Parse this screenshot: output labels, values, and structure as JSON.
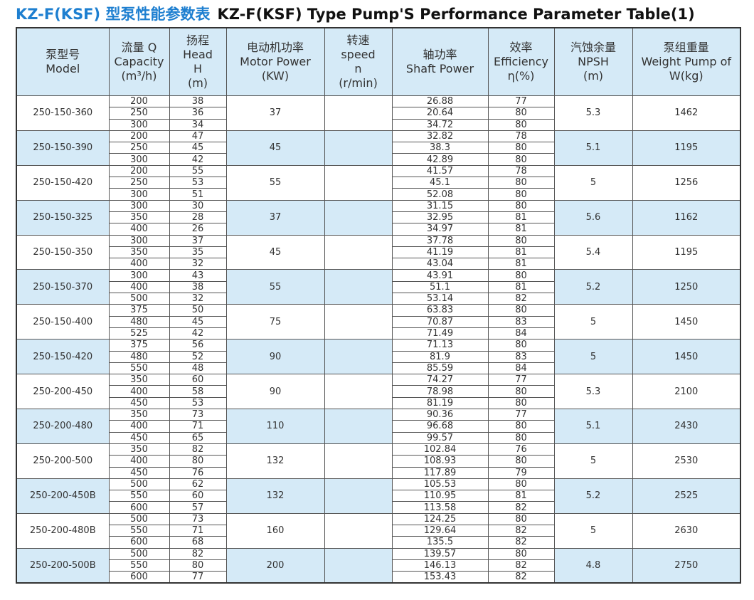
{
  "title": {
    "cn": "KZ-F(KSF) 型泵性能参数表",
    "en": "KZ-F(KSF) Type Pump'S Performance Parameter Table(1)"
  },
  "table": {
    "header": [
      [
        "泵型号",
        "Model"
      ],
      [
        "流量 Q",
        "Capacity",
        "(m³/h)"
      ],
      [
        "扬程",
        "Head",
        "H",
        "(m)"
      ],
      [
        "电动机功率",
        "Motor Power",
        "(KW)"
      ],
      [
        "转速",
        "speed",
        "n",
        "(r/min)"
      ],
      [
        "轴功率",
        "Shaft Power"
      ],
      [
        "效率",
        "Efficiency",
        "η(%)"
      ],
      [
        "汽蚀余量",
        "NPSH",
        "(m)"
      ],
      [
        "泵组重量",
        "Weight Pump of",
        "W(kg)"
      ]
    ],
    "groups": [
      {
        "model": "250-150-360",
        "motor": 37,
        "npsh": 5.3,
        "weight": 1462,
        "rows": [
          [
            200,
            38,
            26.88,
            77
          ],
          [
            250,
            36,
            20.64,
            80
          ],
          [
            300,
            34,
            34.72,
            80
          ]
        ]
      },
      {
        "model": "250-150-390",
        "motor": 45,
        "npsh": 5.1,
        "weight": 1195,
        "rows": [
          [
            200,
            47,
            32.82,
            78
          ],
          [
            250,
            45,
            38.3,
            80
          ],
          [
            300,
            42,
            42.89,
            80
          ]
        ]
      },
      {
        "model": "250-150-420",
        "motor": 55,
        "npsh": 5,
        "weight": 1256,
        "rows": [
          [
            200,
            55,
            41.57,
            78
          ],
          [
            250,
            53,
            45.1,
            80
          ],
          [
            300,
            51,
            52.08,
            80
          ]
        ]
      },
      {
        "model": "250-150-325",
        "motor": 37,
        "npsh": 5.6,
        "weight": 1162,
        "rows": [
          [
            300,
            30,
            31.15,
            80
          ],
          [
            350,
            28,
            32.95,
            81
          ],
          [
            400,
            26,
            34.97,
            81
          ]
        ]
      },
      {
        "model": "250-150-350",
        "motor": 45,
        "npsh": 5.4,
        "weight": 1195,
        "rows": [
          [
            300,
            37,
            37.78,
            80
          ],
          [
            350,
            35,
            41.19,
            81
          ],
          [
            400,
            32,
            43.04,
            81
          ]
        ]
      },
      {
        "model": "250-150-370",
        "motor": 55,
        "npsh": 5.2,
        "weight": 1250,
        "rows": [
          [
            300,
            43,
            43.91,
            80
          ],
          [
            400,
            38,
            51.1,
            81
          ],
          [
            500,
            32,
            53.14,
            82
          ]
        ]
      },
      {
        "model": "250-150-400",
        "motor": 75,
        "npsh": 5,
        "weight": 1450,
        "rows": [
          [
            375,
            50,
            63.83,
            80
          ],
          [
            480,
            45,
            70.87,
            83
          ],
          [
            525,
            42,
            71.49,
            84
          ]
        ]
      },
      {
        "model": "250-150-420",
        "motor": 90,
        "npsh": 5,
        "weight": 1450,
        "rows": [
          [
            375,
            56,
            71.13,
            80
          ],
          [
            480,
            52,
            81.9,
            83
          ],
          [
            550,
            48,
            85.59,
            84
          ]
        ]
      },
      {
        "model": "250-200-450",
        "motor": 90,
        "npsh": 5.3,
        "weight": 2100,
        "rows": [
          [
            350,
            60,
            74.27,
            77
          ],
          [
            400,
            58,
            78.98,
            80
          ],
          [
            450,
            53,
            81.19,
            80
          ]
        ]
      },
      {
        "model": "250-200-480",
        "motor": 110,
        "npsh": 5.1,
        "weight": 2430,
        "rows": [
          [
            350,
            73,
            90.36,
            77
          ],
          [
            400,
            71,
            96.68,
            80
          ],
          [
            450,
            65,
            99.57,
            80
          ]
        ]
      },
      {
        "model": "250-200-500",
        "motor": 132,
        "npsh": 5,
        "weight": 2530,
        "rows": [
          [
            350,
            82,
            102.84,
            76
          ],
          [
            400,
            80,
            108.93,
            80
          ],
          [
            450,
            76,
            117.89,
            79
          ]
        ]
      },
      {
        "model": "250-200-450B",
        "motor": 132,
        "npsh": 5.2,
        "weight": 2525,
        "rows": [
          [
            500,
            62,
            105.53,
            80
          ],
          [
            550,
            60,
            110.95,
            81
          ],
          [
            600,
            57,
            113.58,
            82
          ]
        ]
      },
      {
        "model": "250-200-480B",
        "motor": 160,
        "npsh": 5,
        "weight": 2630,
        "rows": [
          [
            500,
            73,
            124.25,
            80
          ],
          [
            550,
            71,
            129.64,
            82
          ],
          [
            600,
            68,
            135.5,
            82
          ]
        ]
      },
      {
        "model": "250-200-500B",
        "motor": 200,
        "npsh": 4.8,
        "weight": 2750,
        "rows": [
          [
            500,
            82,
            139.57,
            80
          ],
          [
            550,
            80,
            146.13,
            82
          ],
          [
            600,
            77,
            153.43,
            82
          ]
        ]
      }
    ]
  }
}
